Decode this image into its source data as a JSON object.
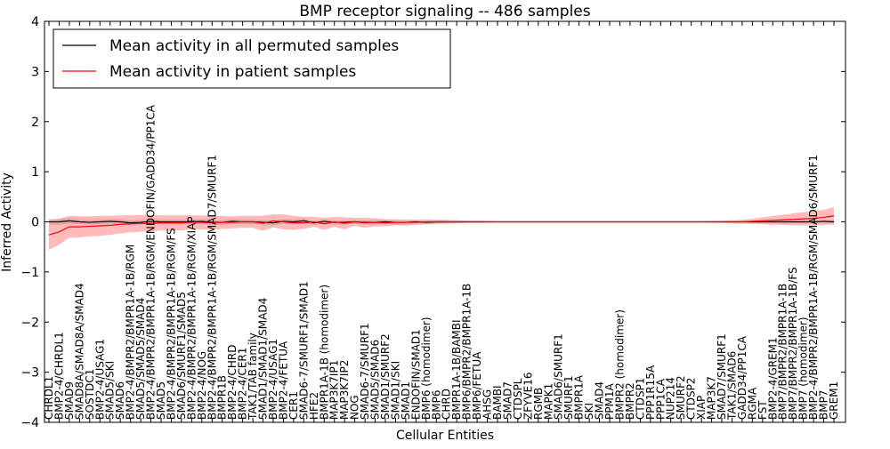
{
  "chart_data": {
    "type": "line",
    "title": "BMP receptor signaling -- 486 samples",
    "xlabel": "Cellular Entities",
    "ylabel": "Inferred Activity",
    "ylim": [
      -4,
      4
    ],
    "yticks": [
      -4,
      -3,
      -2,
      -1,
      0,
      1,
      2,
      3,
      4
    ],
    "grid": false,
    "legend_position": "top-left",
    "categories": [
      "CHRDL1",
      "BMP2-4/CHRDL1",
      "SMAD9",
      "SMAD8A/SMAD8A/SMAD4",
      "SOSTDC1",
      "BMP2-4/USAG1",
      "SMAD5/SKI",
      "SMAD6",
      "BMP2-4/BMPR2/BMPR1A-1B/RGM",
      "SMAD5/SMAD5/SMAD4",
      "BMP2-4/BMPR2/BMPR1A-1B/RGM/ENDOFIN/GADD34/PP1CA",
      "SMAD5",
      "BMP2-4/BMPR2/BMPR1A-1B/RGM/FS",
      "SMAD6/SMURF1/SMAD5",
      "BMP2-4/BMPR2/BMPR1A-1B/RGM/XIAP",
      "BMP2-4/NOG",
      "BMP2-4/BMPR2/BMPR1A-1B/RGM/SMAD7/SMURF1",
      "BMPR1B",
      "BMP2-4/CHRD",
      "BMP2-4/CER1",
      "TAK1/TAB family",
      "SMAD1/SMAD1/SMAD4",
      "BMP2-4/USAG1",
      "BMP2-4/FETUA",
      "CER1",
      "SMAD6-7/SMURF1/SMAD1",
      "HFE2",
      "BMPR1A-1B (homodimer)",
      "MAP3K7IP1",
      "MAP3K7IP2",
      "NOG",
      "SMAD6-7/SMURF1",
      "SMAD5/SMAD6",
      "SMAD1/SMURF2",
      "SMAD1/SKI",
      "SMAD1",
      "ENDOFIN/SMAD1",
      "BMP6 (homodimer)",
      "BMP6",
      "CHRD",
      "BMPR1A-1B/BAMBI",
      "BMP6/BMPR2/BMPR1A-1B",
      "BMP6/FETUA",
      "AHSG",
      "BAMBI",
      "SMAD7",
      "CTDSPL",
      "ZFYVE16",
      "RGMB",
      "MAPK1",
      "SMAD6/SMURF1",
      "SMURF1",
      "BMPR1A",
      "SKI",
      "SMAD4",
      "PPM1A",
      "BMPR2 (homodimer)",
      "BMPR2",
      "CTDSP1",
      "PPP1R15A",
      "PPP1CA",
      "NUP214",
      "SMURF2",
      "CTDSP2",
      "XIAP",
      "MAP3K7",
      "SMAD7/SMURF1",
      "TAK1/SMAD6",
      "GADD34/PP1CA",
      "RGMA",
      "FST",
      "BMP2-4/GREM1",
      "BMP7/BMPR2/BMPR1A-1B",
      "BMP7/BMPR2/BMPR1A-1B/FS",
      "BMP7 (homodimer)",
      "BMP2-4/BMPR2/BMPR1A-1B/RGM/SMAD6/SMURF1",
      "BMP7",
      "GREM1"
    ],
    "series": [
      {
        "name": "Mean activity in all permuted samples",
        "color": "#000000",
        "values": [
          0.0,
          0.0,
          0.02,
          0.0,
          -0.01,
          0.0,
          0.01,
          0.0,
          -0.02,
          -0.01,
          0.01,
          0.0,
          0.0,
          0.0,
          0.0,
          0.01,
          -0.01,
          -0.01,
          0.01,
          0.0,
          0.0,
          -0.01,
          -0.02,
          0.01,
          0.0,
          0.02,
          -0.02,
          0.01,
          -0.01,
          -0.01,
          0.0,
          -0.01,
          -0.01,
          0.0,
          -0.01,
          -0.01,
          0.0,
          -0.01,
          0.0,
          0.0,
          0.0,
          0.0,
          0.0,
          0.0,
          0.0,
          0.0,
          0.0,
          0.0,
          0.0,
          0.0,
          0.0,
          0.0,
          0.0,
          0.0,
          0.0,
          0.0,
          0.0,
          0.0,
          0.0,
          0.0,
          0.0,
          0.0,
          0.0,
          0.0,
          0.0,
          0.0,
          0.0,
          0.0,
          0.0,
          0.0,
          0.0,
          0.0,
          0.0,
          0.0,
          0.0,
          0.0,
          0.01,
          0.0
        ],
        "band": [
          0.06,
          0.06,
          0.06,
          0.05,
          0.05,
          0.05,
          0.05,
          0.05,
          0.05,
          0.05,
          0.05,
          0.05,
          0.05,
          0.05,
          0.05,
          0.05,
          0.05,
          0.05,
          0.05,
          0.05,
          0.05,
          0.05,
          0.05,
          0.05,
          0.05,
          0.05,
          0.04,
          0.04,
          0.04,
          0.04,
          0.04,
          0.04,
          0.04,
          0.04,
          0.04,
          0.03,
          0.03,
          0.03,
          0.03,
          0.02,
          0.02,
          0.02,
          0.02,
          0.01,
          0.01,
          0.01,
          0.01,
          0.01,
          0.01,
          0.01,
          0.01,
          0.01,
          0.01,
          0.01,
          0.01,
          0.01,
          0.01,
          0.01,
          0.01,
          0.01,
          0.01,
          0.01,
          0.01,
          0.01,
          0.01,
          0.01,
          0.01,
          0.01,
          0.01,
          0.02,
          0.02,
          0.02,
          0.03,
          0.03,
          0.03,
          0.03,
          0.03,
          0.03
        ]
      },
      {
        "name": "Mean activity in patient samples",
        "color": "#ff0000",
        "values": [
          -0.26,
          -0.2,
          -0.1,
          -0.1,
          -0.09,
          -0.08,
          -0.07,
          -0.05,
          -0.04,
          -0.03,
          -0.03,
          -0.02,
          -0.02,
          -0.02,
          -0.01,
          -0.01,
          -0.02,
          -0.01,
          -0.01,
          0.0,
          0.0,
          -0.03,
          0.02,
          0.0,
          -0.02,
          -0.02,
          0.0,
          -0.04,
          0.0,
          -0.03,
          0.0,
          -0.02,
          -0.01,
          -0.02,
          -0.01,
          -0.01,
          -0.01,
          0.0,
          0.0,
          0.0,
          0.0,
          0.0,
          0.0,
          0.0,
          0.0,
          0.0,
          0.0,
          0.0,
          0.0,
          0.0,
          0.0,
          0.0,
          0.0,
          0.0,
          0.0,
          0.0,
          0.0,
          0.0,
          0.0,
          0.0,
          0.0,
          0.0,
          0.0,
          0.0,
          0.0,
          0.0,
          0.0,
          0.0,
          0.0,
          0.01,
          0.02,
          0.03,
          0.04,
          0.05,
          0.06,
          0.07,
          0.09,
          0.12
        ],
        "band": [
          0.3,
          0.26,
          0.22,
          0.21,
          0.2,
          0.2,
          0.19,
          0.18,
          0.17,
          0.17,
          0.16,
          0.15,
          0.15,
          0.15,
          0.14,
          0.14,
          0.14,
          0.13,
          0.12,
          0.12,
          0.12,
          0.15,
          0.13,
          0.15,
          0.14,
          0.12,
          0.1,
          0.12,
          0.1,
          0.12,
          0.08,
          0.1,
          0.08,
          0.07,
          0.06,
          0.06,
          0.05,
          0.05,
          0.04,
          0.04,
          0.03,
          0.02,
          0.02,
          0.02,
          0.01,
          0.01,
          0.01,
          0.01,
          0.01,
          0.01,
          0.01,
          0.01,
          0.01,
          0.01,
          0.01,
          0.01,
          0.01,
          0.01,
          0.01,
          0.01,
          0.01,
          0.01,
          0.01,
          0.01,
          0.01,
          0.02,
          0.02,
          0.03,
          0.04,
          0.05,
          0.07,
          0.09,
          0.1,
          0.12,
          0.13,
          0.14,
          0.15,
          0.17
        ]
      }
    ]
  }
}
